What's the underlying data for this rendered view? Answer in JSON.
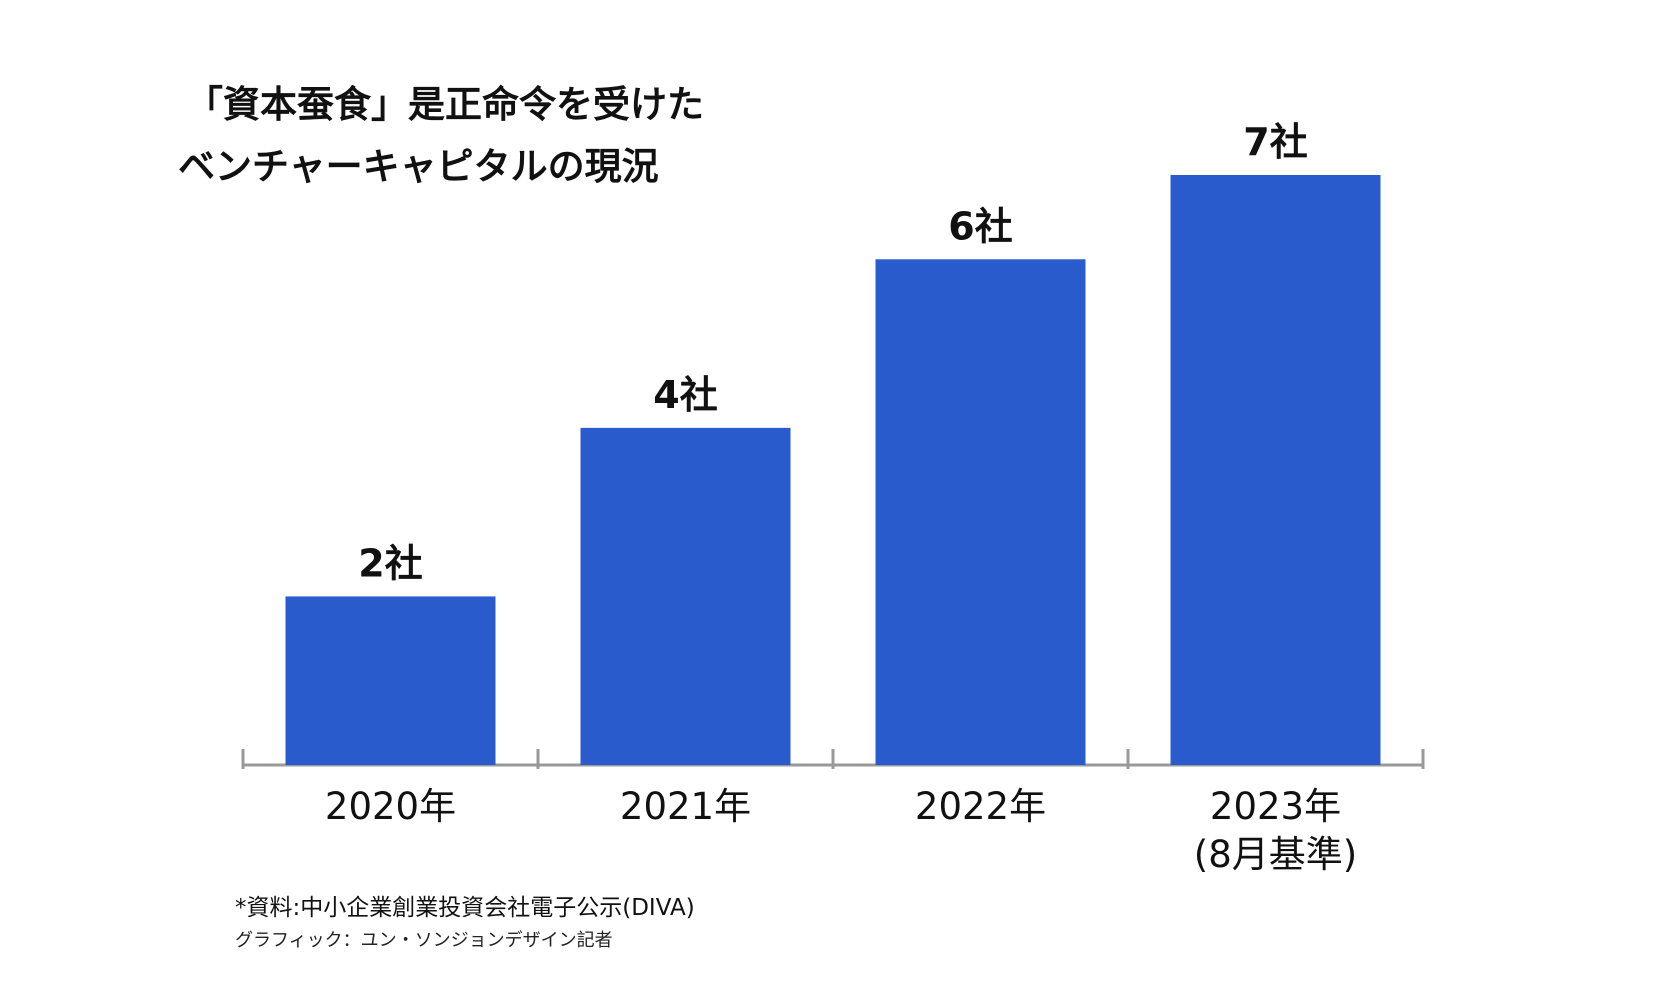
{
  "chart_data": {
    "type": "bar",
    "title_lines": [
      "「資本蚕食」是正命令を受けた",
      "ベンチャーキャピタルの現況"
    ],
    "categories": [
      "2020年",
      "2021年",
      "2022年",
      "2023年\n(8月基準)"
    ],
    "values": [
      2,
      4,
      6,
      7
    ],
    "data_labels": [
      "2社",
      "4社",
      "6社",
      "7社"
    ],
    "xlabel": "",
    "ylabel": "",
    "ylim": [
      0,
      7
    ],
    "grid": false,
    "legend": "none",
    "bar_color": "#2a5bcd",
    "axis_color": "#999999"
  },
  "footnotes": {
    "source": "*資料:中小企業創業投資会社電子公示(DIVA)",
    "credit": "グラフィック：ユン・ソンジョンデザイン記者"
  }
}
